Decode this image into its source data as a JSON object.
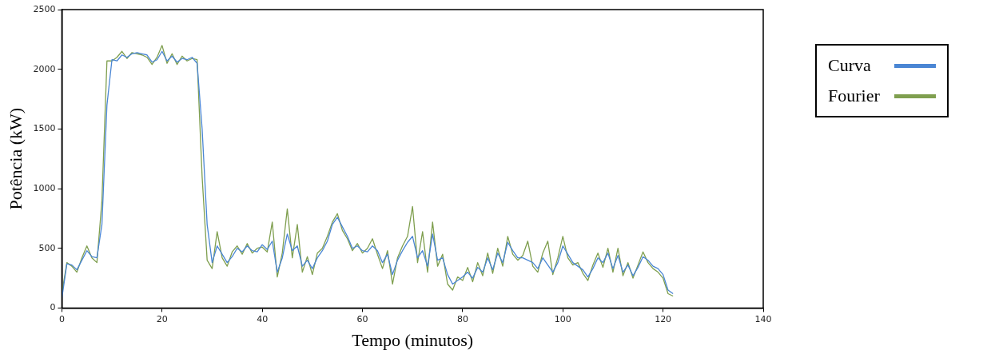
{
  "chart_data": {
    "type": "line",
    "xlabel": "Tempo (minutos)",
    "ylabel": "Potência (kW)",
    "x": [
      0,
      1,
      2,
      3,
      4,
      5,
      6,
      7,
      8,
      9,
      10,
      11,
      12,
      13,
      14,
      15,
      16,
      17,
      18,
      19,
      20,
      21,
      22,
      23,
      24,
      25,
      26,
      27,
      28,
      29,
      30,
      31,
      32,
      33,
      34,
      35,
      36,
      37,
      38,
      39,
      40,
      41,
      42,
      43,
      44,
      45,
      46,
      47,
      48,
      49,
      50,
      51,
      52,
      53,
      54,
      55,
      56,
      57,
      58,
      59,
      60,
      61,
      62,
      63,
      64,
      65,
      66,
      67,
      68,
      69,
      70,
      71,
      72,
      73,
      74,
      75,
      76,
      77,
      78,
      79,
      80,
      81,
      82,
      83,
      84,
      85,
      86,
      87,
      88,
      89,
      90,
      91,
      92,
      93,
      94,
      95,
      96,
      97,
      98,
      99,
      100,
      101,
      102,
      103,
      104,
      105,
      106,
      107,
      108,
      109,
      110,
      111,
      112,
      113,
      114,
      115,
      116,
      117,
      118,
      119,
      120,
      121,
      122
    ],
    "series": [
      {
        "name": "Curva",
        "color": "#4a86d4",
        "values": [
          80,
          370,
          360,
          320,
          400,
          480,
          430,
          420,
          700,
          1700,
          2080,
          2070,
          2120,
          2100,
          2130,
          2140,
          2130,
          2120,
          2060,
          2080,
          2150,
          2070,
          2110,
          2060,
          2090,
          2080,
          2100,
          2050,
          1500,
          700,
          380,
          520,
          450,
          380,
          430,
          500,
          470,
          520,
          480,
          470,
          530,
          490,
          560,
          300,
          420,
          620,
          480,
          520,
          350,
          400,
          330,
          420,
          480,
          560,
          700,
          760,
          680,
          600,
          500,
          520,
          480,
          470,
          520,
          480,
          380,
          450,
          280,
          400,
          480,
          550,
          600,
          420,
          480,
          350,
          620,
          400,
          420,
          280,
          200,
          230,
          260,
          300,
          250,
          340,
          300,
          420,
          320,
          460,
          380,
          550,
          480,
          420,
          420,
          400,
          380,
          330,
          420,
          360,
          300,
          380,
          520,
          450,
          380,
          350,
          320,
          260,
          330,
          420,
          380,
          460,
          330,
          440,
          300,
          360,
          270,
          340,
          430,
          400,
          350,
          330,
          280,
          150,
          120
        ]
      },
      {
        "name": "Fourier",
        "color": "#7f9f4f",
        "values": [
          120,
          380,
          350,
          300,
          420,
          520,
          420,
          380,
          900,
          2070,
          2070,
          2100,
          2150,
          2090,
          2140,
          2130,
          2120,
          2100,
          2040,
          2100,
          2200,
          2050,
          2130,
          2040,
          2110,
          2070,
          2090,
          2080,
          1100,
          400,
          330,
          640,
          420,
          350,
          470,
          520,
          450,
          540,
          460,
          500,
          510,
          470,
          720,
          260,
          460,
          830,
          420,
          700,
          300,
          430,
          280,
          460,
          500,
          600,
          720,
          790,
          650,
          580,
          480,
          540,
          460,
          500,
          580,
          450,
          330,
          480,
          200,
          420,
          520,
          600,
          850,
          380,
          640,
          300,
          720,
          350,
          450,
          200,
          150,
          260,
          230,
          340,
          220,
          380,
          270,
          460,
          290,
          500,
          350,
          600,
          450,
          400,
          440,
          560,
          350,
          300,
          460,
          560,
          280,
          420,
          600,
          420,
          360,
          380,
          290,
          230,
          360,
          460,
          340,
          500,
          300,
          500,
          270,
          380,
          250,
          360,
          470,
          380,
          330,
          300,
          250,
          120,
          100
        ]
      }
    ],
    "xlim": [
      0,
      140
    ],
    "xticks": [
      0,
      20,
      40,
      60,
      80,
      100,
      120,
      140
    ],
    "ylim": [
      0,
      2500
    ],
    "yticks": [
      0,
      500,
      1000,
      1500,
      2000,
      2500
    ],
    "grid": false,
    "legend": "right",
    "marker": "none",
    "line_style": "solid"
  }
}
